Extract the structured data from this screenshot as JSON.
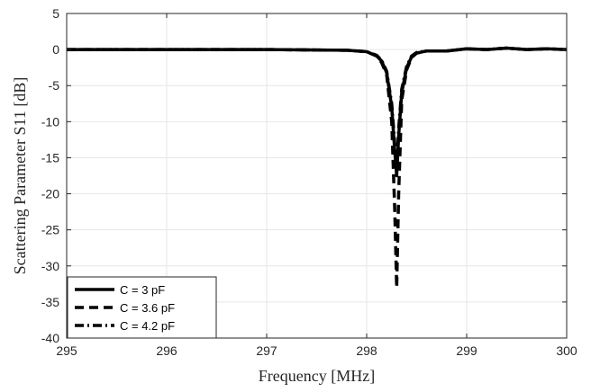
{
  "chart_data": {
    "type": "line",
    "xlabel": "Frequency [MHz]",
    "ylabel": "Scattering Parameter S11 [dB]",
    "xlim": [
      295,
      300
    ],
    "ylim": [
      -40,
      5
    ],
    "x_ticks": [
      295,
      296,
      297,
      298,
      299,
      300
    ],
    "y_ticks": [
      5,
      0,
      -5,
      -10,
      -15,
      -20,
      -25,
      -30,
      -35,
      -40
    ],
    "grid": true,
    "legend_position": "bottom-left",
    "series": [
      {
        "name": "C = 3 pF",
        "line_style": "solid",
        "x": [
          295.0,
          296.0,
          297.0,
          297.8,
          298.0,
          298.1,
          298.15,
          298.2,
          298.25,
          298.28,
          298.3,
          298.32,
          298.35,
          298.4,
          298.45,
          298.5,
          298.6,
          298.8,
          299.0,
          299.2,
          299.4,
          299.6,
          299.8,
          300.0
        ],
        "y": [
          0.0,
          0.0,
          0.0,
          -0.1,
          -0.3,
          -0.9,
          -1.6,
          -3.2,
          -8.0,
          -14.0,
          -17.5,
          -12.0,
          -6.0,
          -2.5,
          -1.0,
          -0.5,
          -0.2,
          -0.2,
          0.1,
          0.0,
          0.2,
          0.0,
          0.1,
          0.0
        ]
      },
      {
        "name": "C = 3.6 pF",
        "line_style": "dashed",
        "x": [
          295.0,
          296.0,
          297.0,
          297.8,
          298.0,
          298.1,
          298.15,
          298.2,
          298.25,
          298.28,
          298.3,
          298.32,
          298.35,
          298.4,
          298.45,
          298.5,
          298.6,
          298.8,
          299.0,
          299.2,
          299.4,
          299.6,
          299.8,
          300.0
        ],
        "y": [
          0.0,
          0.0,
          0.0,
          -0.1,
          -0.3,
          -0.9,
          -1.8,
          -3.5,
          -10.0,
          -22.0,
          -33.0,
          -20.0,
          -7.0,
          -2.8,
          -1.1,
          -0.5,
          -0.2,
          -0.2,
          0.1,
          0.0,
          0.2,
          0.0,
          0.1,
          0.0
        ]
      },
      {
        "name": "C = 4.2 pF",
        "line_style": "dash-dot",
        "x": [
          295.0,
          296.0,
          297.0,
          297.8,
          298.0,
          298.1,
          298.15,
          298.2,
          298.25,
          298.28,
          298.3,
          298.32,
          298.35,
          298.4,
          298.45,
          298.5,
          298.6,
          298.8,
          299.0,
          299.2,
          299.4,
          299.6,
          299.8,
          300.0
        ],
        "y": [
          0.0,
          0.0,
          0.0,
          -0.1,
          -0.3,
          -0.8,
          -1.5,
          -3.0,
          -7.5,
          -13.0,
          -16.5,
          -11.0,
          -5.5,
          -2.3,
          -0.9,
          -0.4,
          -0.2,
          -0.2,
          0.1,
          0.0,
          0.2,
          0.0,
          0.1,
          0.0
        ]
      }
    ]
  }
}
